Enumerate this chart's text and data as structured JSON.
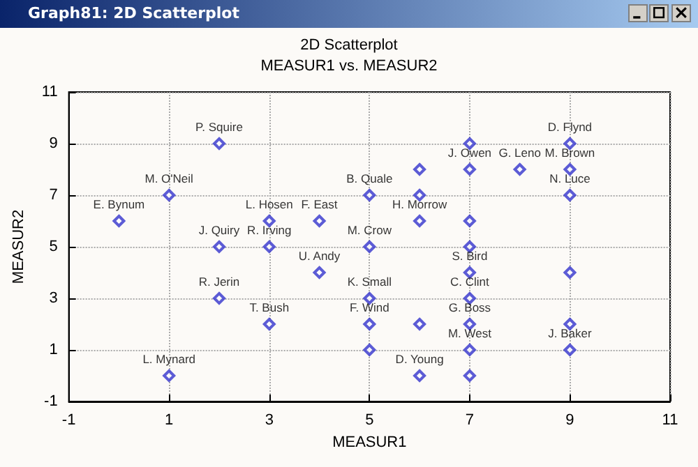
{
  "chart_data": {
    "type": "scatter",
    "title": "2D Scatterplot",
    "subtitle": "MEASUR1 vs. MEASUR2",
    "xlabel": "MEASUR1",
    "ylabel": "MEASUR2",
    "annotations": [
      "Graph81: 2D Scatterplot"
    ],
    "x": [
      2,
      1,
      0,
      3,
      4,
      2,
      3,
      4,
      2,
      3,
      1,
      5,
      5,
      5,
      5,
      5,
      7,
      9,
      6,
      7,
      8,
      9,
      6,
      9,
      6,
      7,
      7,
      7,
      9,
      7,
      6,
      7,
      9,
      7,
      9,
      6,
      7
    ],
    "series": [
      {
        "color": "#3333cc",
        "values": [
          9,
          7,
          6,
          6,
          6,
          5,
          5,
          4,
          3,
          2,
          0,
          7,
          5,
          3,
          2,
          1,
          9,
          9,
          8,
          8,
          8,
          8,
          7,
          7,
          6,
          6,
          5,
          4,
          4,
          3,
          2,
          2,
          2,
          1,
          1,
          0,
          0
        ],
        "value_labels": [
          "P. Squire",
          "M. O'Neil",
          "E. Bynum",
          "L. Hosen",
          "F. East",
          "J. Quiry",
          "R. Irving",
          "U. Andy",
          "R. Jerin",
          "T. Bush",
          "L. Mynard",
          "B. Quale",
          "M. Crow",
          "K. Small",
          "F. Wind",
          null,
          null,
          "D. Flynd",
          null,
          "J. Owen",
          "G. Leno",
          "M. Brown",
          null,
          "N. Luce",
          "H. Morrow",
          null,
          null,
          "S. Bird",
          null,
          "C. Clint",
          null,
          "G. Boss",
          null,
          "M. West",
          "J. Baker",
          "D. Young",
          null
        ]
      }
    ],
    "xlim": [
      -1,
      11
    ],
    "xticks": [
      -1,
      1,
      3,
      5,
      7,
      9,
      11
    ],
    "ylim": [
      -1,
      11
    ],
    "yticks": [
      -1,
      1,
      3,
      5,
      7,
      9,
      11
    ],
    "grid": true,
    "marker": "diamond"
  }
}
